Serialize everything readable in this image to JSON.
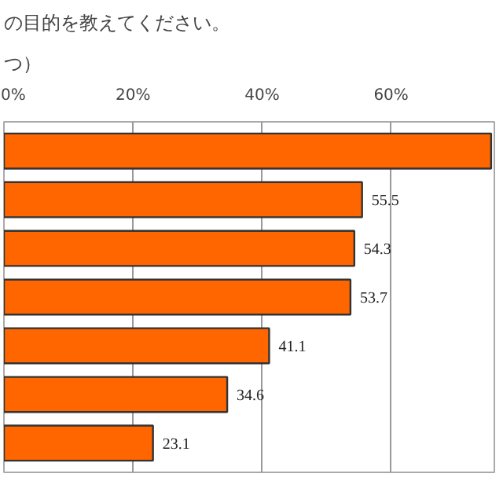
{
  "chart_data": {
    "type": "bar",
    "orientation": "horizontal",
    "title": "の目的を教えてください。",
    "subtitle": "つ）",
    "categories": [
      null,
      null,
      null,
      null,
      null,
      null,
      null
    ],
    "values": [
      75.5,
      55.5,
      54.3,
      53.7,
      41.1,
      34.6,
      23.1
    ],
    "value_labels": [
      null,
      "55.5",
      "54.3",
      "53.7",
      "41.1",
      "34.6",
      "23.1"
    ],
    "color": "#ff6600",
    "xlim": [
      0,
      76
    ],
    "xticks": [
      {
        "value": 0,
        "label": "0%"
      },
      {
        "value": 20,
        "label": "20%"
      },
      {
        "value": 40,
        "label": "40%"
      },
      {
        "value": 60,
        "label": "60%"
      }
    ],
    "grid": "x"
  }
}
